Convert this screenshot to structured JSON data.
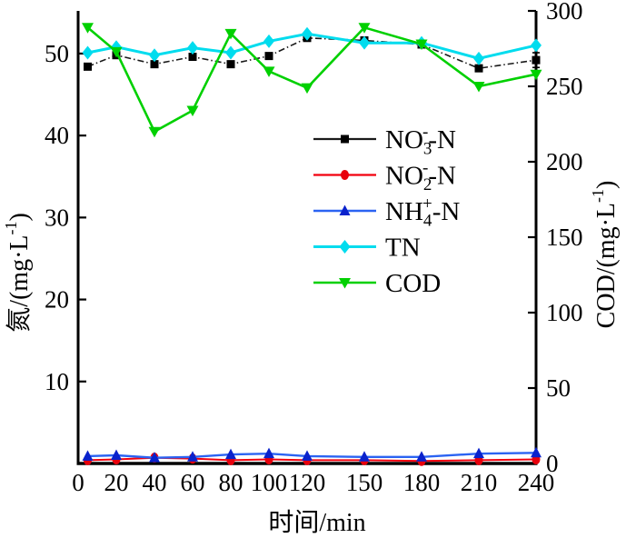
{
  "figure": {
    "background": "#ffffff",
    "axis_color": "#000000"
  },
  "chart_data": {
    "type": "line",
    "x": [
      5,
      20,
      40,
      60,
      80,
      100,
      120,
      150,
      180,
      210,
      240
    ],
    "x_range": [
      0,
      240
    ],
    "y_left_range": [
      0,
      55.2
    ],
    "y_right_range": [
      0,
      300
    ],
    "x_ticks": [
      0,
      20,
      40,
      60,
      80,
      100,
      120,
      150,
      180,
      210,
      240
    ],
    "y_left_ticks": [
      10,
      20,
      30,
      40,
      50
    ],
    "y_right_ticks": [
      0,
      50,
      100,
      150,
      200,
      250,
      300
    ],
    "xlabel": "时间/min",
    "ylabel_left": "氮/(mg·L⁻¹)",
    "ylabel_right": "COD/(mg·L⁻¹)",
    "xlabel_parts": [
      [
        "t",
        "时间/min"
      ]
    ],
    "ylabel_left_parts": [
      [
        "t",
        "氮/(mg·L"
      ],
      [
        "sup",
        "-1"
      ],
      [
        "t",
        ")"
      ]
    ],
    "ylabel_right_parts": [
      [
        "t",
        "COD/(mg·L"
      ],
      [
        "sup",
        "-1"
      ],
      [
        "t",
        ")"
      ]
    ],
    "grid": false,
    "legend_position": "center-right-upper",
    "series": [
      {
        "name": "NO₃⁻-N",
        "label_parts": [
          [
            "t",
            "NO"
          ],
          [
            "sub",
            "3"
          ],
          [
            "sup",
            "-"
          ],
          [
            "t",
            "-N"
          ]
        ],
        "axis": "left",
        "color": "#1a1a1a",
        "marker_color": "#000000",
        "marker": "square",
        "dash": "7 3 1.5 3",
        "line_width": 1.6,
        "values": [
          48.4,
          49.8,
          48.7,
          49.6,
          48.7,
          49.7,
          51.9,
          51.6,
          51.1,
          48.2,
          49.2
        ],
        "errors": [
          0,
          0,
          0,
          0,
          0,
          0,
          0,
          0,
          0,
          0,
          0.9
        ]
      },
      {
        "name": "NO₂⁻-N",
        "label_parts": [
          [
            "t",
            "NO"
          ],
          [
            "sub",
            "2"
          ],
          [
            "sup",
            "-"
          ],
          [
            "t",
            "-N"
          ]
        ],
        "axis": "left",
        "color": "#f2000e",
        "marker_color": "#e8000c",
        "marker": "circle",
        "dash": "",
        "line_width": 2,
        "values": [
          0.4,
          0.5,
          0.7,
          0.6,
          0.4,
          0.5,
          0.4,
          0.4,
          0.3,
          0.4,
          0.5
        ],
        "errors": [
          0,
          0,
          0,
          0,
          0,
          0,
          0,
          0,
          0,
          0,
          0
        ]
      },
      {
        "name": "NH₄⁺-N",
        "label_parts": [
          [
            "t",
            "NH"
          ],
          [
            "sub",
            "4"
          ],
          [
            "sup",
            "+"
          ],
          [
            "t",
            "-N"
          ]
        ],
        "axis": "left",
        "color": "#2b63f2",
        "marker_color": "#0a22cc",
        "marker": "triangle-up",
        "dash": "",
        "line_width": 2.4,
        "values": [
          0.9,
          1.0,
          0.7,
          0.8,
          1.1,
          1.2,
          0.9,
          0.8,
          0.8,
          1.2,
          1.3
        ],
        "errors": [
          0,
          0,
          0,
          0,
          0,
          0,
          0,
          0,
          0,
          0,
          0
        ]
      },
      {
        "name": "TN",
        "label_parts": [
          [
            "t",
            "TN"
          ]
        ],
        "axis": "left",
        "color": "#00dcee",
        "marker_color": "#00dcee",
        "marker": "diamond",
        "dash": "",
        "line_width": 3,
        "values": [
          50.1,
          50.8,
          49.8,
          50.7,
          50.1,
          51.5,
          52.4,
          51.3,
          51.3,
          49.4,
          51.0
        ],
        "errors": [
          0,
          0,
          0,
          0,
          0,
          0,
          0,
          0,
          0,
          0,
          0
        ]
      },
      {
        "name": "COD",
        "label_parts": [
          [
            "t",
            "COD"
          ]
        ],
        "axis": "right",
        "color": "#00d000",
        "marker_color": "#00d000",
        "marker": "triangle-down",
        "dash": "",
        "line_width": 2.6,
        "values": [
          289,
          273,
          220,
          234,
          285,
          260,
          249,
          289,
          278,
          250,
          258
        ],
        "errors": [
          0,
          0,
          0,
          0,
          0,
          0,
          0,
          0,
          0,
          0,
          0
        ]
      }
    ]
  }
}
